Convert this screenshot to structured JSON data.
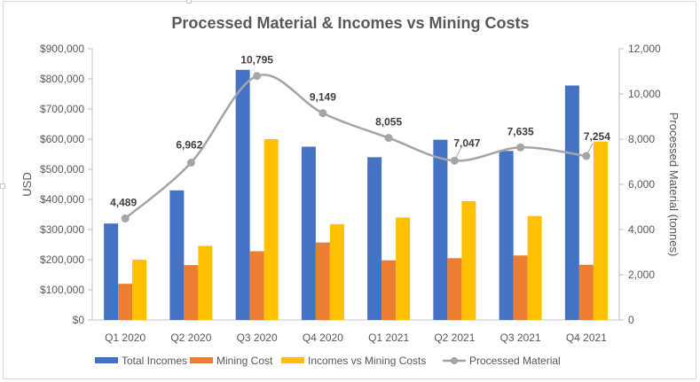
{
  "chart_data": {
    "type": "bar",
    "title": "Processed Material & Incomes vs Mining Costs",
    "xlabel": "",
    "ylabel": "USD",
    "y2label": "Processed Material (tonnes)",
    "categories": [
      "Q1 2020",
      "Q2 2020",
      "Q3 2020",
      "Q4 2020",
      "Q1 2021",
      "Q2 2021",
      "Q3 2021",
      "Q4 2021"
    ],
    "ylim": [
      0,
      900000
    ],
    "yticks": [
      "$0",
      "$100,000",
      "$200,000",
      "$300,000",
      "$400,000",
      "$500,000",
      "$600,000",
      "$700,000",
      "$800,000",
      "$900,000"
    ],
    "y2lim": [
      0,
      12000
    ],
    "y2ticks": [
      "0",
      "2,000",
      "4,000",
      "6,000",
      "8,000",
      "10,000",
      "12,000"
    ],
    "grid": false,
    "legend_position": "bottom",
    "series": [
      {
        "name": "Total Incomes",
        "type": "bar",
        "axis": "left",
        "color": "#4472C4",
        "values": [
          320000,
          430000,
          830000,
          575000,
          540000,
          598000,
          561000,
          778000
        ]
      },
      {
        "name": "Mining Cost",
        "type": "bar",
        "axis": "left",
        "color": "#ED7D31",
        "values": [
          120000,
          182000,
          228000,
          257000,
          198000,
          205000,
          214000,
          183000
        ]
      },
      {
        "name": "Incomes vs Mining Costs",
        "type": "bar",
        "axis": "left",
        "color": "#FFC000",
        "values": [
          200000,
          246000,
          600000,
          318000,
          340000,
          394000,
          345000,
          592000
        ]
      },
      {
        "name": "Processed Material",
        "type": "line",
        "axis": "right",
        "color": "#A5A5A5",
        "smooth": true,
        "values": [
          4489,
          6962,
          10795,
          9149,
          8055,
          7047,
          7635,
          7254
        ],
        "labels": [
          "4,489",
          "6,962",
          "10,795",
          "9,149",
          "8,055",
          "7,047",
          "7,635",
          "7,254"
        ]
      }
    ]
  }
}
